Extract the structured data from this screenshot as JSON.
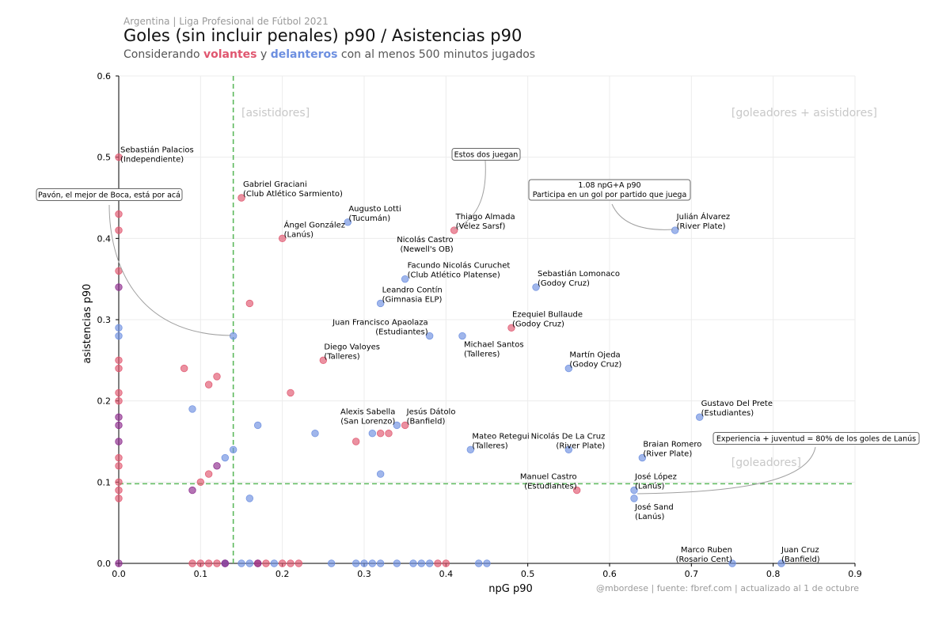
{
  "header": {
    "supertitle": "Argentina | Liga Profesional de Fútbol 2021",
    "title": "Goles (sin incluir penales) p90 / Asistencias p90",
    "subtitle_pre": "Considerando ",
    "subtitle_vol": "volantes",
    "subtitle_mid": " y ",
    "subtitle_del": "delanteros",
    "subtitle_post": " con al menos 500 minutos jugados"
  },
  "credit": "@mbordese | fuente: fbref.com | actualizado al 1 de octubre",
  "colors": {
    "volantes": "#e0566f",
    "delanteros": "#6d8fe0",
    "both": "#8c2a8c",
    "reference": "#5cb85c",
    "zone": "#c8c8c8"
  },
  "chart_data": {
    "type": "scatter",
    "xlabel": "npG p90",
    "ylabel": "asistencias p90",
    "xlim": [
      0,
      0.9
    ],
    "ylim": [
      0,
      0.6
    ],
    "xticks": [
      "0.0",
      "0.1",
      "0.2",
      "0.3",
      "0.4",
      "0.5",
      "0.6",
      "0.7",
      "0.8",
      "0.9"
    ],
    "yticks": [
      "0.0",
      "0.1",
      "0.2",
      "0.3",
      "0.4",
      "0.5",
      "0.6"
    ],
    "grid": true,
    "reference_lines": {
      "x": 0.14,
      "y": 0.098
    },
    "zone_labels": [
      "[asistidores]",
      "[goleadores + asistidores]",
      "[goleadores]"
    ],
    "series": [
      {
        "name": "volantes",
        "points": [
          [
            0,
            0.5
          ],
          [
            0,
            0.43
          ],
          [
            0,
            0.41
          ],
          [
            0,
            0.36
          ],
          [
            0,
            0.25
          ],
          [
            0,
            0.24
          ],
          [
            0,
            0.21
          ],
          [
            0,
            0.2
          ],
          [
            0,
            0.13
          ],
          [
            0,
            0.12
          ],
          [
            0,
            0.1
          ],
          [
            0,
            0.09
          ],
          [
            0,
            0.08
          ],
          [
            0.08,
            0.24
          ],
          [
            0.11,
            0.22
          ],
          [
            0.12,
            0.23
          ],
          [
            0.11,
            0.11
          ],
          [
            0.1,
            0.1
          ],
          [
            0.15,
            0.45
          ],
          [
            0.16,
            0.32
          ],
          [
            0.2,
            0.4
          ],
          [
            0.21,
            0.21
          ],
          [
            0.25,
            0.25
          ],
          [
            0.29,
            0.15
          ],
          [
            0.32,
            0.16
          ],
          [
            0.33,
            0.16
          ],
          [
            0.35,
            0.17
          ],
          [
            0.41,
            0.41
          ],
          [
            0.48,
            0.29
          ],
          [
            0.56,
            0.09
          ],
          [
            0.09,
            0
          ],
          [
            0.1,
            0
          ],
          [
            0.11,
            0
          ],
          [
            0.12,
            0
          ],
          [
            0.13,
            0
          ],
          [
            0.17,
            0
          ],
          [
            0.18,
            0
          ],
          [
            0.2,
            0
          ],
          [
            0.21,
            0
          ],
          [
            0.22,
            0
          ],
          [
            0.39,
            0
          ],
          [
            0.4,
            0
          ]
        ]
      },
      {
        "name": "delanteros",
        "points": [
          [
            0,
            0.29
          ],
          [
            0,
            0.28
          ],
          [
            0.09,
            0.19
          ],
          [
            0.13,
            0.13
          ],
          [
            0.14,
            0.14
          ],
          [
            0.14,
            0.28
          ],
          [
            0.16,
            0.08
          ],
          [
            0.17,
            0.17
          ],
          [
            0.24,
            0.16
          ],
          [
            0.28,
            0.42
          ],
          [
            0.31,
            0.16
          ],
          [
            0.32,
            0.11
          ],
          [
            0.32,
            0.32
          ],
          [
            0.34,
            0.17
          ],
          [
            0.35,
            0.35
          ],
          [
            0.38,
            0.28
          ],
          [
            0.42,
            0.28
          ],
          [
            0.43,
            0.14
          ],
          [
            0.51,
            0.34
          ],
          [
            0.55,
            0.24
          ],
          [
            0.55,
            0.14
          ],
          [
            0.63,
            0.09
          ],
          [
            0.63,
            0.08
          ],
          [
            0.64,
            0.13
          ],
          [
            0.68,
            0.41
          ],
          [
            0.71,
            0.18
          ],
          [
            0.75,
            0
          ],
          [
            0.81,
            0
          ],
          [
            0.13,
            0
          ],
          [
            0.15,
            0
          ],
          [
            0.16,
            0
          ],
          [
            0.19,
            0
          ],
          [
            0.26,
            0
          ],
          [
            0.29,
            0
          ],
          [
            0.3,
            0
          ],
          [
            0.31,
            0
          ],
          [
            0.32,
            0
          ],
          [
            0.34,
            0
          ],
          [
            0.36,
            0
          ],
          [
            0.37,
            0
          ],
          [
            0.38,
            0
          ],
          [
            0.44,
            0
          ],
          [
            0.45,
            0
          ]
        ]
      },
      {
        "name": "overlap",
        "points": [
          [
            0,
            0.34
          ],
          [
            0,
            0.18
          ],
          [
            0,
            0.17
          ],
          [
            0,
            0.15
          ],
          [
            0,
            0
          ],
          [
            0.09,
            0.09
          ],
          [
            0.12,
            0.12
          ],
          [
            0.17,
            0
          ],
          [
            0.13,
            0
          ]
        ]
      }
    ],
    "labels": [
      {
        "text": "Sebastián Palacios|(Independiente)",
        "x": 0,
        "y": 0.5,
        "anchor": "start",
        "dx": 2,
        "dy": -14
      },
      {
        "text": "Gabriel Graciani|(Club Atlético Sarmiento)",
        "x": 0.15,
        "y": 0.45,
        "anchor": "start",
        "dx": 2,
        "dy": -22
      },
      {
        "text": "Ángel González|(Lanús)",
        "x": 0.2,
        "y": 0.4,
        "anchor": "start",
        "dx": 2,
        "dy": -22
      },
      {
        "text": "Augusto Lotti|(Tucumán)",
        "x": 0.28,
        "y": 0.42,
        "anchor": "start",
        "dx": 1,
        "dy": -22
      },
      {
        "text": "Thiago Almada|(Vélez Sarsf)",
        "x": 0.41,
        "y": 0.41,
        "anchor": "start",
        "dx": 2,
        "dy": -22
      },
      {
        "text": "Nicolás Castro|(Newell's OB)",
        "x": 0.41,
        "y": 0.41,
        "anchor": "end",
        "dx": -1,
        "dy": 7
      },
      {
        "text": "Julián Álvarez|(River Plate)",
        "x": 0.68,
        "y": 0.41,
        "anchor": "start",
        "dx": 2,
        "dy": -22
      },
      {
        "text": "Facundo Nicolás Curuchet|(Club Atlético Platense)",
        "x": 0.35,
        "y": 0.35,
        "anchor": "start",
        "dx": 3,
        "dy": -22
      },
      {
        "text": "Sebastián Lomonaco|(Godoy Cruz)",
        "x": 0.51,
        "y": 0.34,
        "anchor": "start",
        "dx": 2,
        "dy": -22
      },
      {
        "text": "Leandro Contín|(Gimnasia ELP)",
        "x": 0.32,
        "y": 0.32,
        "anchor": "start",
        "dx": 2,
        "dy": -22
      },
      {
        "text": "Ezequiel Bullaude|(Godoy Cruz)",
        "x": 0.48,
        "y": 0.29,
        "anchor": "start",
        "dx": 1,
        "dy": -22
      },
      {
        "text": "Juan Francisco Apaolaza|(Estudiantes)",
        "x": 0.38,
        "y": 0.28,
        "anchor": "end",
        "dx": -2,
        "dy": -22
      },
      {
        "text": "Michael Santos|(Talleres)",
        "x": 0.42,
        "y": 0.28,
        "anchor": "start",
        "dx": 2,
        "dy": 6
      },
      {
        "text": "Diego Valoyes|(Talleres)",
        "x": 0.25,
        "y": 0.25,
        "anchor": "start",
        "dx": 1,
        "dy": -22
      },
      {
        "text": "Martín Ojeda|(Godoy Cruz)",
        "x": 0.55,
        "y": 0.24,
        "anchor": "start",
        "dx": 1,
        "dy": -22
      },
      {
        "text": "Gustavo Del Prete|(Estudiantes)",
        "x": 0.71,
        "y": 0.18,
        "anchor": "start",
        "dx": 2,
        "dy": -22
      },
      {
        "text": "Alexis Sabella|(San Lorenzo)",
        "x": 0.34,
        "y": 0.17,
        "anchor": "end",
        "dx": -2,
        "dy": -22
      },
      {
        "text": "Jesús Dátolo|(Banfield)",
        "x": 0.35,
        "y": 0.17,
        "anchor": "start",
        "dx": 2,
        "dy": -22
      },
      {
        "text": "Mateo Retegui|(Talleres)",
        "x": 0.43,
        "y": 0.14,
        "anchor": "start",
        "dx": 2,
        "dy": -22
      },
      {
        "text": "Nicolás De La Cruz|(River Plate)",
        "x": 0.55,
        "y": 0.14,
        "anchor": "end",
        "dx": 46,
        "dy": -22
      },
      {
        "text": "Braian Romero|(River Plate)",
        "x": 0.64,
        "y": 0.13,
        "anchor": "start",
        "dx": 1,
        "dy": -22
      },
      {
        "text": "Manuel Castro|(Estudiantes)",
        "x": 0.56,
        "y": 0.09,
        "anchor": "end",
        "dx": 0,
        "dy": -22
      },
      {
        "text": "José López|(Lanús)",
        "x": 0.63,
        "y": 0.09,
        "anchor": "start",
        "dx": 1,
        "dy": -22
      },
      {
        "text": "José Sand|(Lanús)",
        "x": 0.63,
        "y": 0.08,
        "anchor": "start",
        "dx": 1,
        "dy": 6
      },
      {
        "text": "Marco Ruben|(Rosario Cent)",
        "x": 0.75,
        "y": 0,
        "anchor": "end",
        "dx": 0,
        "dy": -22
      },
      {
        "text": "Juan Cruz|(Banfield)",
        "x": 0.81,
        "y": 0,
        "anchor": "start",
        "dx": 0,
        "dy": -22
      }
    ],
    "annotations": [
      {
        "text": "Pavón, el mejor de Boca, está por acá"
      },
      {
        "text": "Estos dos juegan"
      },
      {
        "text": "1.08 npG+A p90|Participa en un gol por partido que juega"
      },
      {
        "text": "Experiencia + juventud = 80% de los goles de Lanús"
      }
    ]
  }
}
